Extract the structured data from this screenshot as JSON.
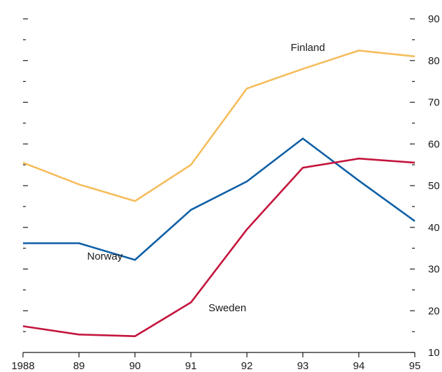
{
  "chart_data": {
    "type": "line",
    "categories": [
      "1988",
      "89",
      "90",
      "91",
      "92",
      "93",
      "94",
      "95"
    ],
    "ylim": [
      10,
      90
    ],
    "yticks": [
      10,
      20,
      30,
      40,
      50,
      60,
      70,
      80,
      90
    ],
    "y_axis_side": "right",
    "grid": false,
    "legend": "inline labels",
    "series": [
      {
        "name": "Finland",
        "color": "#f5bd5c",
        "values": [
          55.5,
          50.3,
          46.3,
          55,
          73.3,
          78,
          82.4,
          81
        ]
      },
      {
        "name": "Norway",
        "color": "#0f5fa6",
        "values": [
          36.2,
          36.2,
          32.2,
          44.2,
          51,
          61.3,
          51.2,
          41.5
        ]
      },
      {
        "name": "Sweden",
        "color": "#c4153c",
        "values": [
          16.3,
          14.3,
          13.9,
          22,
          39.5,
          54.3,
          56.5,
          55.5
        ]
      }
    ]
  }
}
